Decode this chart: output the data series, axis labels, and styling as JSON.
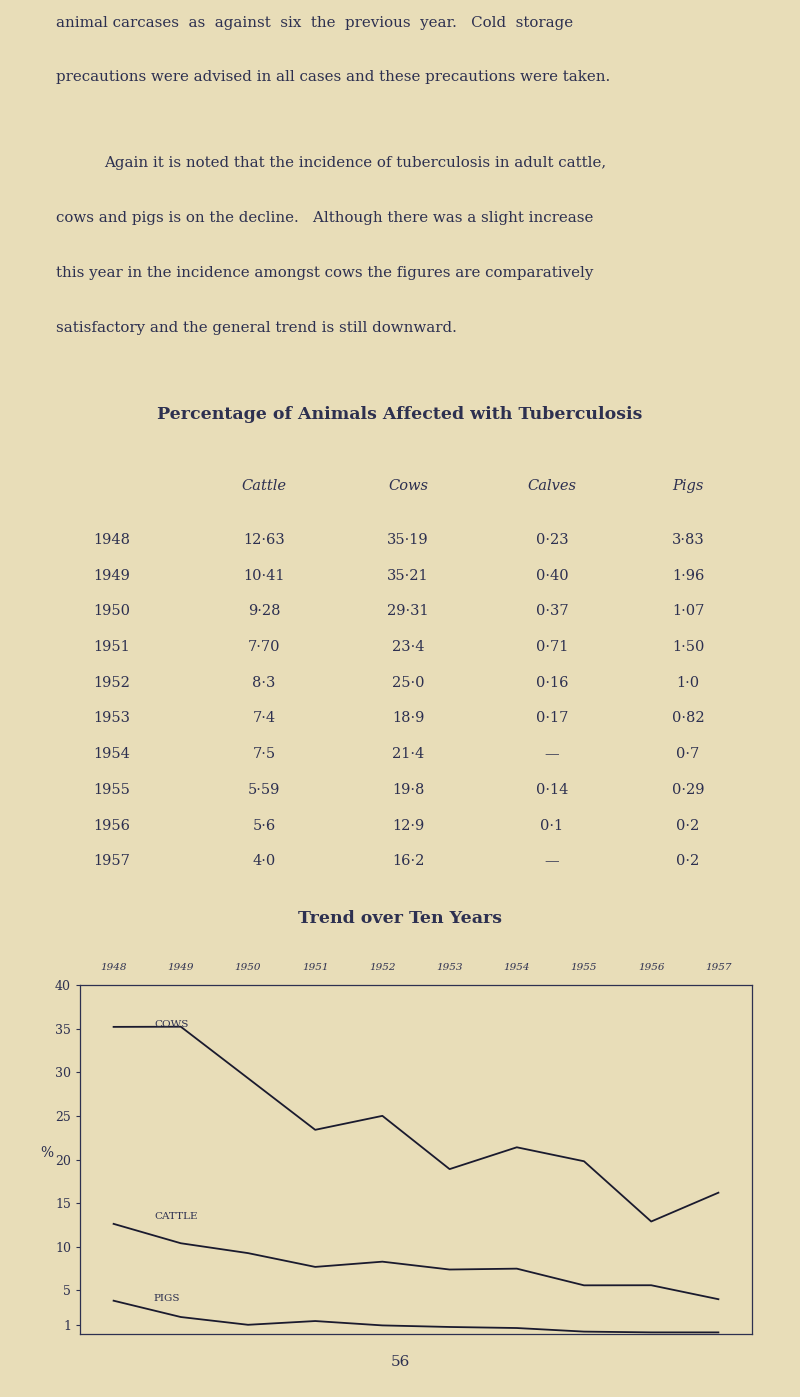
{
  "background_color": "#e8ddb8",
  "text_color": "#2d3050",
  "title_text": "Percentage of Animals Affected with Tuberculosis",
  "table_years": [
    1948,
    1949,
    1950,
    1951,
    1952,
    1953,
    1954,
    1955,
    1956,
    1957
  ],
  "cattle": [
    12.63,
    10.41,
    9.28,
    7.7,
    8.3,
    7.4,
    7.5,
    5.59,
    5.6,
    4.0
  ],
  "cows": [
    35.19,
    35.21,
    29.31,
    23.4,
    25.0,
    18.9,
    21.4,
    19.8,
    12.9,
    16.2
  ],
  "pigs": [
    3.83,
    1.96,
    1.07,
    1.5,
    1.0,
    0.82,
    0.7,
    0.29,
    0.2,
    0.2
  ],
  "table_cattle_str": [
    "12·63",
    "10·41",
    "9·28",
    "7·70",
    "8·3",
    "7·4",
    "7·5",
    "5·59",
    "5·6",
    "4·0"
  ],
  "table_cows_str": [
    "35·19",
    "35·21",
    "29·31",
    "23·4",
    "25·0",
    "18·9",
    "21·4",
    "19·8",
    "12·9",
    "16·2"
  ],
  "table_calves_str": [
    "0·23",
    "0·40",
    "0·37",
    "0·71",
    "0·16",
    "0·17",
    "—",
    "0·14",
    "0·1",
    "—"
  ],
  "table_pigs_str": [
    "3·83",
    "1·96",
    "1·07",
    "1·50",
    "1·0",
    "0·82",
    "0·7",
    "0·29",
    "0·2",
    "0·2"
  ],
  "chart_title": "Trend over Ten Years",
  "chart_yticks": [
    1,
    5,
    10,
    15,
    20,
    25,
    30,
    35,
    40
  ],
  "chart_ytick_labels": [
    "1",
    "5",
    "10",
    "15",
    "20",
    "25",
    "30",
    "35",
    "40"
  ],
  "chart_years": [
    "1948",
    "1949",
    "1950",
    "1951",
    "1952",
    "1953",
    "1954",
    "1955",
    "1956",
    "1957"
  ],
  "line_color": "#1a1a2e",
  "para1_line1": "animal carcases  as  against  six  the  previous  year.   Cold  storage",
  "para1_line2": "precautions were advised in all cases and these precautions were taken.",
  "para2_line1": "Again it is noted that the incidence of tuberculosis in adult cattle,",
  "para2_line2": "cows and pigs is on the decline.   Although there was a slight increase",
  "para2_line3": "this year in the incidence amongst cows the figures are comparatively",
  "para2_line4": "satisfactory and the general trend is still downward.",
  "page_number": "56"
}
